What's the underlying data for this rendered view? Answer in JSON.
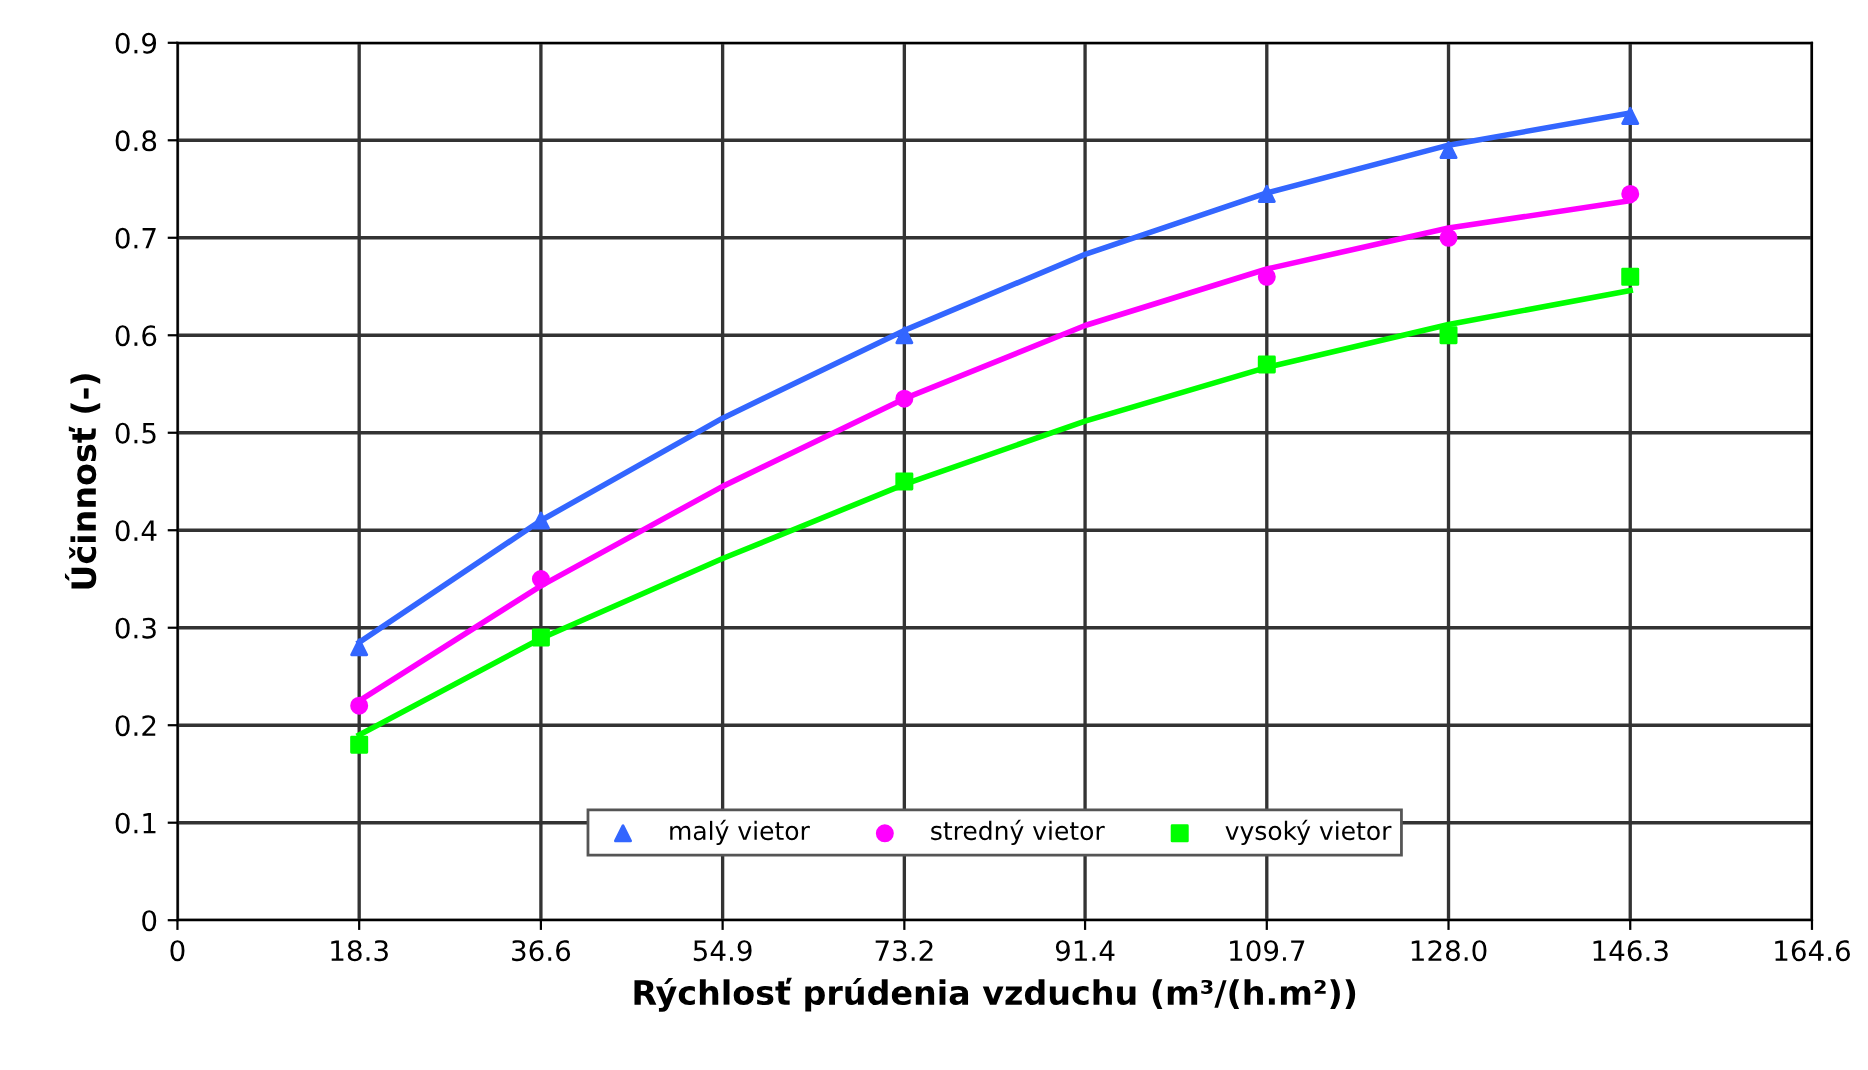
{
  "chart_data": {
    "type": "scatter",
    "xlabel": "Rýchlosť prúdenia vzduchu (m³/(h.m²))",
    "ylabel": "Účinnosť (-)",
    "xlim": [
      0,
      164.6
    ],
    "xticks": [
      0,
      18.3,
      36.6,
      54.9,
      73.2,
      91.4,
      109.7,
      {
        "value": 128,
        "label": "128.0"
      },
      146.3,
      164.6
    ],
    "ylim": [
      0,
      0.9
    ],
    "yticks": [
      0,
      0.1,
      0.2,
      0.3,
      0.4,
      0.5,
      0.6,
      0.7,
      0.8,
      0.9
    ],
    "grid": true,
    "legend": "bottom",
    "series": [
      {
        "name": "malý vietor",
        "color": "#3366ff",
        "marker": "triangle",
        "x": [
          18.3,
          36.6,
          73.2,
          109.7,
          128.0,
          146.3
        ],
        "values": [
          0.28,
          0.41,
          0.6,
          0.745,
          0.79,
          0.825
        ]
      },
      {
        "name": "stredný vietor",
        "color": "#ff00ff",
        "marker": "circle",
        "x": [
          18.3,
          36.6,
          73.2,
          109.7,
          128.0,
          146.3
        ],
        "values": [
          0.22,
          0.35,
          0.535,
          0.66,
          0.7,
          0.745
        ]
      },
      {
        "name": "vysoký vietor",
        "color": "#00ff00",
        "marker": "square",
        "x": [
          18.3,
          36.6,
          73.2,
          109.7,
          128.0,
          146.3
        ],
        "values": [
          0.18,
          0.29,
          0.45,
          0.57,
          0.6,
          0.66
        ]
      },
      {
        "type": "line",
        "color": "#3366ff",
        "marker": "none",
        "line_style": "solid",
        "x": [
          18.3,
          36.6,
          54.9,
          73.2,
          91.4,
          109.7,
          128.0,
          146.3
        ],
        "values": [
          0.285,
          0.41,
          0.515,
          0.605,
          0.683,
          0.746,
          0.795,
          0.828
        ]
      },
      {
        "type": "line",
        "color": "#ff00ff",
        "marker": "none",
        "line_style": "solid",
        "x": [
          18.3,
          36.6,
          54.9,
          73.2,
          91.4,
          109.7,
          128.0,
          146.3
        ],
        "values": [
          0.225,
          0.343,
          0.445,
          0.535,
          0.61,
          0.668,
          0.71,
          0.738
        ]
      },
      {
        "type": "line",
        "color": "#00ff00",
        "marker": "none",
        "line_style": "solid",
        "x": [
          18.3,
          36.6,
          54.9,
          73.2,
          91.4,
          109.7,
          128.0,
          146.3
        ],
        "values": [
          0.19,
          0.289,
          0.371,
          0.447,
          0.512,
          0.567,
          0.611,
          0.646
        ]
      }
    ]
  }
}
